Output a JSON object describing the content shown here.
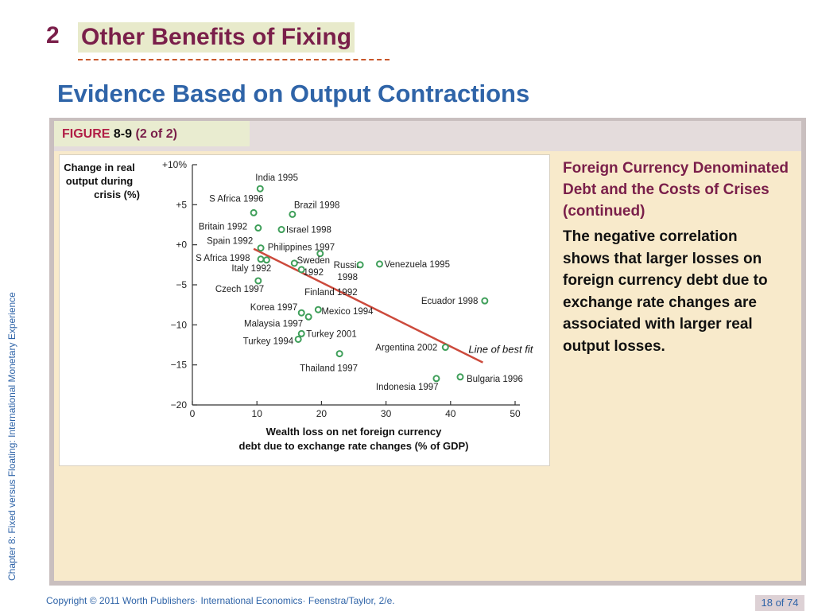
{
  "slide": {
    "section_number": "2",
    "section_title": "Other Benefits of Fixing",
    "subtitle": "Evidence Based on Output Contractions",
    "side_label": "Chapter 8: Fixed versus Floating: International Monetary Experience",
    "figure": {
      "word": "FIGURE",
      "number": "8-9",
      "part": "(2 of 2)"
    },
    "panel_heading": "Foreign Currency Denominated Debt and the Costs of Crises (continued)",
    "panel_body": "The negative correlation shows that larger losses on foreign currency debt due to exchange rate changes are associated with larger real output losses.",
    "copyright": "Copyright © 2011 Worth Publishers· International Economics· Feenstra/Taylor, 2/e.",
    "page": "18 of 74"
  },
  "colors": {
    "title": "#7a1f4a",
    "subtitle": "#2f64a8",
    "point": "#3f9f5a",
    "fit_line": "#cc4a3c"
  },
  "chart_data": {
    "type": "scatter",
    "ylabel": "Change in real output during crisis (%)",
    "xlabel": "Wealth loss on net foreign currency debt due to exchange rate changes (% of GDP)",
    "xlim": [
      0,
      50
    ],
    "ylim": [
      -20,
      10
    ],
    "x_ticks": [
      0,
      10,
      20,
      30,
      40,
      50
    ],
    "y_ticks": [
      {
        "value": 10,
        "label": "+10%"
      },
      {
        "value": 5,
        "label": "+5"
      },
      {
        "value": 0,
        "label": "+0"
      },
      {
        "value": -5,
        "label": "−5"
      },
      {
        "value": -10,
        "label": "−10"
      },
      {
        "value": -15,
        "label": "−15"
      },
      {
        "value": -20,
        "label": "−20"
      }
    ],
    "points": [
      {
        "label": "India 1995",
        "x": 10.5,
        "y": 7.0
      },
      {
        "label": "S Africa 1996",
        "x": 9.5,
        "y": 4.0
      },
      {
        "label": "Brazil 1998",
        "x": 15.5,
        "y": 3.8
      },
      {
        "label": "Britain 1992",
        "x": 10.2,
        "y": 2.1
      },
      {
        "label": "Israel 1998",
        "x": 13.8,
        "y": 1.9
      },
      {
        "label": "Spain 1992",
        "x": 10.6,
        "y": -0.4
      },
      {
        "label": "Philippines 1997",
        "x": 19.8,
        "y": -1.1
      },
      {
        "label": "S Africa 1998",
        "x": 10.6,
        "y": -1.8
      },
      {
        "label": "Italy 1992",
        "x": 11.5,
        "y": -1.9
      },
      {
        "label": "Sweden 1992",
        "x": 15.8,
        "y": -2.3
      },
      {
        "label": "Russia 1998",
        "x": 16.9,
        "y": -3.1
      },
      {
        "label": "Venezuela 1995",
        "x": 29.0,
        "y": -2.4
      },
      {
        "label": "Czech 1997",
        "x": 10.2,
        "y": -4.5
      },
      {
        "label": "Finland 1992",
        "x": 26.0,
        "y": -2.5
      },
      {
        "label": "Ecuador 1998",
        "x": 45.3,
        "y": -7.0
      },
      {
        "label": "Korea 1997",
        "x": 16.9,
        "y": -8.5
      },
      {
        "label": "Malaysia 1997",
        "x": 18.0,
        "y": -9.0
      },
      {
        "label": "Mexico 1994",
        "x": 19.5,
        "y": -8.1
      },
      {
        "label": "Turkey 2001",
        "x": 16.9,
        "y": -11.1
      },
      {
        "label": "Turkey 1994",
        "x": 16.4,
        "y": -11.8
      },
      {
        "label": "Argentina 2002",
        "x": 39.2,
        "y": -12.8
      },
      {
        "label": "Thailand 1997",
        "x": 22.8,
        "y": -13.6
      },
      {
        "label": "Indonesia 1997",
        "x": 37.8,
        "y": -16.7
      },
      {
        "label": "Bulgaria 1996",
        "x": 41.5,
        "y": -16.5
      }
    ],
    "fit_line": {
      "label": "Line of best fit",
      "x": [
        9.5,
        45
      ],
      "y": [
        -0.5,
        -14.7
      ]
    }
  }
}
